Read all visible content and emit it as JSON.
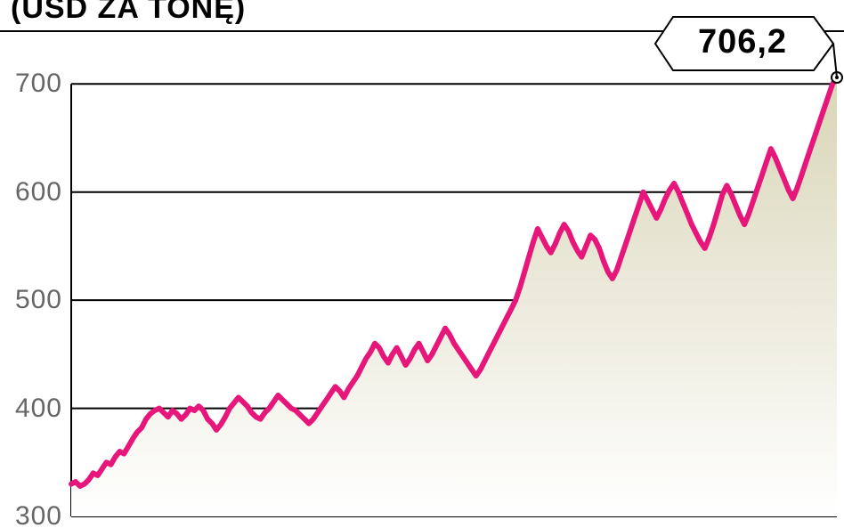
{
  "title_fragment": "(USD ZA TONĘ)",
  "chart": {
    "type": "area",
    "ylim": [
      300,
      720
    ],
    "y_ticks": [
      300,
      400,
      500,
      600,
      700
    ],
    "y_tick_labels": [
      "300",
      "400",
      "500",
      "600",
      "700"
    ],
    "tick_label_color": "#666666",
    "tick_label_fontsize": 30,
    "gridline_color": "#000000",
    "gridline_width": 2,
    "axis_color": "#000000",
    "axis_width": 2,
    "background_color": "#ffffff",
    "line_color": "#e6167a",
    "line_width": 6,
    "area_gradient_top": "#d9d5b8",
    "area_gradient_bottom": "#ffffff",
    "end_marker_outer_color": "#000000",
    "end_marker_inner_color": "#ffffff",
    "end_marker_radius": 6,
    "callout": {
      "text": "706,2",
      "font_size": 38,
      "font_weight": 800,
      "border_color": "#000000",
      "background_color": "#ffffff"
    },
    "series": [
      330,
      332,
      328,
      330,
      334,
      340,
      338,
      344,
      350,
      348,
      355,
      360,
      358,
      365,
      372,
      378,
      382,
      390,
      395,
      398,
      400,
      396,
      392,
      398,
      395,
      390,
      394,
      400,
      398,
      402,
      398,
      390,
      386,
      380,
      385,
      392,
      400,
      405,
      410,
      406,
      402,
      396,
      392,
      390,
      396,
      400,
      406,
      412,
      408,
      404,
      400,
      398,
      394,
      390,
      386,
      390,
      396,
      402,
      408,
      414,
      420,
      416,
      410,
      418,
      424,
      430,
      438,
      446,
      452,
      460,
      456,
      448,
      442,
      450,
      456,
      448,
      440,
      446,
      454,
      460,
      452,
      444,
      450,
      458,
      466,
      474,
      468,
      460,
      454,
      448,
      442,
      436,
      430,
      436,
      444,
      452,
      460,
      468,
      476,
      484,
      492,
      500,
      512,
      526,
      540,
      554,
      566,
      558,
      550,
      544,
      552,
      562,
      570,
      564,
      554,
      546,
      540,
      550,
      560,
      556,
      548,
      536,
      526,
      520,
      528,
      540,
      552,
      564,
      576,
      588,
      600,
      592,
      584,
      576,
      584,
      594,
      602,
      608,
      600,
      590,
      580,
      570,
      562,
      554,
      548,
      558,
      570,
      584,
      598,
      606,
      598,
      588,
      578,
      570,
      580,
      592,
      604,
      616,
      628,
      640,
      632,
      622,
      612,
      602,
      594,
      604,
      616,
      628,
      640,
      652,
      664,
      676,
      688,
      700,
      706
    ]
  }
}
